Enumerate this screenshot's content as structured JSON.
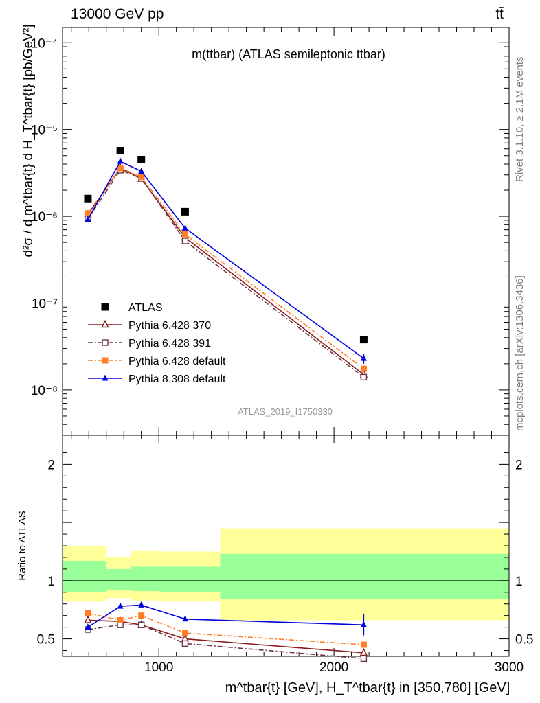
{
  "header": {
    "energy_label": "13000 GeV pp",
    "process_label": "tt̄"
  },
  "side_labels": {
    "rivet": "Rivet 3.1.10, ≥ 2.1M events",
    "mcplots": "mcplots.cern.ch [arXiv:1306.3436]"
  },
  "chart_data": {
    "type": "scatter",
    "title": "m(ttbar) (ATLAS semileptonic ttbar)",
    "analysis_id": "ATLAS_2019_I1750330",
    "ylabel": "d²σ / d m^tbar{t} d H_T^tbar{t} [pb/GeV²]",
    "xlabel": "m^tbar{t} [GeV], H_T^tbar{t} in [350,780] [GeV]",
    "ratio_ylabel": "Ratio to ATLAS",
    "xlim": [
      450,
      3000
    ],
    "ylim": [
      3e-09,
      0.00015
    ],
    "y_scale": "log",
    "ratio_ylim": [
      0.35,
      2.25
    ],
    "x_ticks": [
      "1000",
      "2000",
      "3000"
    ],
    "y_ticks": [
      "10⁻⁸",
      "10⁻⁷",
      "10⁻⁶",
      "10⁻⁵",
      "10⁻⁴"
    ],
    "ratio_ticks": [
      "0.5",
      "1",
      "2"
    ],
    "x": [
      595,
      780,
      900,
      1150,
      2170
    ],
    "bin_edges": [
      450,
      700,
      840,
      1000,
      1350,
      3000
    ],
    "legend_position": "center-left",
    "series": [
      {
        "name": "ATLAS",
        "color": "#000000",
        "marker": "square-filled",
        "line": "none",
        "values": [
          1.6e-06,
          5.7e-06,
          4.5e-06,
          1.13e-06,
          3.8e-08
        ]
      },
      {
        "name": "Pythia 6.428 370",
        "color": "#8b1a1a",
        "marker": "triangle-open",
        "line": "solid",
        "values": [
          1.05e-06,
          3.6e-06,
          2.7e-06,
          5.7e-07,
          1.5e-08
        ],
        "ratio": [
          0.66,
          0.65,
          0.62,
          0.5,
          0.38
        ]
      },
      {
        "name": "Pythia 6.428 391",
        "color": "#6b3545",
        "marker": "square-open",
        "line": "dashdot",
        "values": [
          9.3e-07,
          3.4e-06,
          2.75e-06,
          5.2e-07,
          1.4e-08
        ],
        "ratio": [
          0.58,
          0.62,
          0.62,
          0.46,
          0.33
        ]
      },
      {
        "name": "Pythia 6.428 default",
        "color": "#ff7f27",
        "marker": "square-filled",
        "line": "dashdot",
        "values": [
          1.08e-06,
          3.6e-06,
          2.85e-06,
          6.2e-07,
          1.75e-08
        ],
        "ratio": [
          0.72,
          0.66,
          0.7,
          0.55,
          0.45
        ]
      },
      {
        "name": "Pythia 8.308 default",
        "color": "#0000dd",
        "marker": "triangle-filled",
        "line": "solid",
        "values": [
          9.2e-07,
          4.3e-06,
          3.3e-06,
          7.3e-07,
          2.3e-08
        ],
        "ratio": [
          0.6,
          0.78,
          0.79,
          0.67,
          0.62
        ]
      }
    ],
    "ratio_bands": {
      "outer_color": "#ffff99",
      "inner_color": "#99ff99",
      "outer": [
        [
          0.82,
          1.3
        ],
        [
          0.85,
          1.2
        ],
        [
          0.83,
          1.26
        ],
        [
          0.82,
          1.25
        ],
        [
          0.66,
          1.45
        ]
      ],
      "inner": [
        [
          0.9,
          1.17
        ],
        [
          0.92,
          1.1
        ],
        [
          0.91,
          1.12
        ],
        [
          0.9,
          1.12
        ],
        [
          0.84,
          1.23
        ]
      ]
    }
  }
}
